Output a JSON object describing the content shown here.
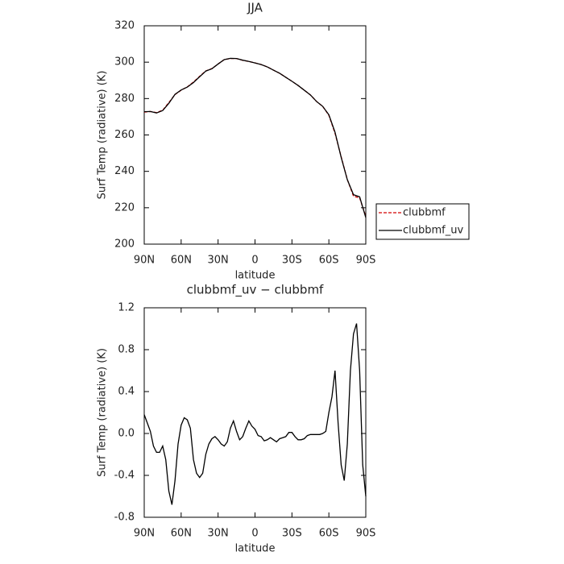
{
  "chart_data": [
    {
      "type": "line",
      "title": "JJA",
      "xlabel": "latitude",
      "ylabel": "Surf Temp (radiative) (K)",
      "x": [
        90,
        85,
        80,
        75,
        70,
        65,
        60,
        55,
        50,
        45,
        40,
        35,
        30,
        25,
        20,
        15,
        10,
        5,
        0,
        -5,
        -10,
        -15,
        -20,
        -25,
        -30,
        -35,
        -40,
        -45,
        -50,
        -55,
        -60,
        -65,
        -70,
        -75,
        -80,
        -85,
        -90
      ],
      "series": [
        {
          "name": "clubbmf",
          "color": "#d40000",
          "linestyle": "dashed",
          "values": [
            272.6,
            272.9,
            272.3,
            273.6,
            277.8,
            282.2,
            284.6,
            286.4,
            289.1,
            292.2,
            295.2,
            296.5,
            299.0,
            301.4,
            302.0,
            302.0,
            301.0,
            300.4,
            299.6,
            298.7,
            297.4,
            295.6,
            293.9,
            291.7,
            289.5,
            287.2,
            284.6,
            282.0,
            278.4,
            275.7,
            270.8,
            260.9,
            248.0,
            235.5,
            226.4,
            225.4,
            215.2
          ]
        },
        {
          "name": "clubbmf_uv",
          "color": "#000000",
          "linestyle": "solid",
          "values": [
            272.8,
            272.9,
            272.1,
            273.4,
            277.4,
            282.3,
            284.7,
            286.3,
            288.8,
            292.0,
            295.1,
            296.4,
            299.0,
            301.4,
            302.1,
            302.0,
            301.1,
            300.4,
            299.6,
            298.7,
            297.4,
            295.6,
            293.9,
            291.7,
            289.5,
            287.2,
            284.6,
            282.0,
            278.4,
            275.7,
            271.1,
            261.5,
            247.7,
            235.4,
            227.2,
            226.0,
            214.6
          ]
        }
      ],
      "xlim": [
        90,
        -90
      ],
      "xticks": [
        {
          "value": 90,
          "label": "90N"
        },
        {
          "value": 60,
          "label": "60N"
        },
        {
          "value": 30,
          "label": "30N"
        },
        0,
        {
          "value": -30,
          "label": "30S"
        },
        {
          "value": -60,
          "label": "60S"
        },
        {
          "value": -90,
          "label": "90S"
        }
      ],
      "ylim": [
        200,
        320
      ],
      "yticks": [
        200,
        220,
        240,
        260,
        280,
        300,
        320
      ],
      "legend": "outside-right"
    },
    {
      "type": "line",
      "title": "clubbmf_uv − clubbmf",
      "xlabel": "latitude",
      "ylabel": "Surf Temp (radiative) (K)",
      "x": [
        90,
        87.5,
        85,
        82.5,
        80,
        77.5,
        75,
        72.5,
        70,
        67.5,
        65,
        62.5,
        60,
        57.5,
        55,
        52.5,
        50,
        47.5,
        45,
        42.5,
        40,
        37.5,
        35,
        32.5,
        30,
        27.5,
        25,
        22.5,
        20,
        17.5,
        15,
        12.5,
        10,
        7.5,
        5,
        2.5,
        0,
        -2.5,
        -5,
        -7.5,
        -10,
        -12.5,
        -15,
        -17.5,
        -20,
        -22.5,
        -25,
        -27.5,
        -30,
        -32.5,
        -35,
        -37.5,
        -40,
        -42.5,
        -45,
        -47.5,
        -50,
        -52.5,
        -55,
        -57.5,
        -60,
        -62.5,
        -65,
        -67.5,
        -70,
        -72.5,
        -75,
        -77.5,
        -80,
        -82.5,
        -85,
        -87.5,
        -90
      ],
      "series": [
        {
          "color": "#000000",
          "linestyle": "solid",
          "values": [
            0.18,
            0.1,
            0.02,
            -0.12,
            -0.18,
            -0.18,
            -0.12,
            -0.25,
            -0.55,
            -0.68,
            -0.45,
            -0.1,
            0.08,
            0.15,
            0.13,
            0.05,
            -0.25,
            -0.38,
            -0.42,
            -0.38,
            -0.2,
            -0.1,
            -0.05,
            -0.03,
            -0.06,
            -0.1,
            -0.12,
            -0.08,
            0.05,
            0.12,
            0.02,
            -0.06,
            -0.03,
            0.05,
            0.12,
            0.07,
            0.04,
            -0.02,
            -0.03,
            -0.07,
            -0.06,
            -0.04,
            -0.06,
            -0.08,
            -0.05,
            -0.04,
            -0.03,
            0.01,
            0.01,
            -0.03,
            -0.06,
            -0.06,
            -0.05,
            -0.02,
            -0.01,
            -0.01,
            -0.01,
            -0.01,
            0.0,
            0.02,
            0.2,
            0.35,
            0.6,
            0.1,
            -0.3,
            -0.45,
            -0.1,
            0.6,
            0.95,
            1.05,
            0.6,
            -0.3,
            -0.6
          ]
        }
      ],
      "xlim": [
        90,
        -90
      ],
      "xticks": [
        {
          "value": 90,
          "label": "90N"
        },
        {
          "value": 60,
          "label": "60N"
        },
        {
          "value": 30,
          "label": "30N"
        },
        0,
        {
          "value": -30,
          "label": "30S"
        },
        {
          "value": -60,
          "label": "60S"
        },
        {
          "value": -90,
          "label": "90S"
        }
      ],
      "ylim": [
        -0.8,
        1.2
      ],
      "yticks": [
        -0.8,
        -0.4,
        {
          "value": 0,
          "label": "0.0"
        },
        0.4,
        0.8,
        1.2
      ]
    }
  ]
}
